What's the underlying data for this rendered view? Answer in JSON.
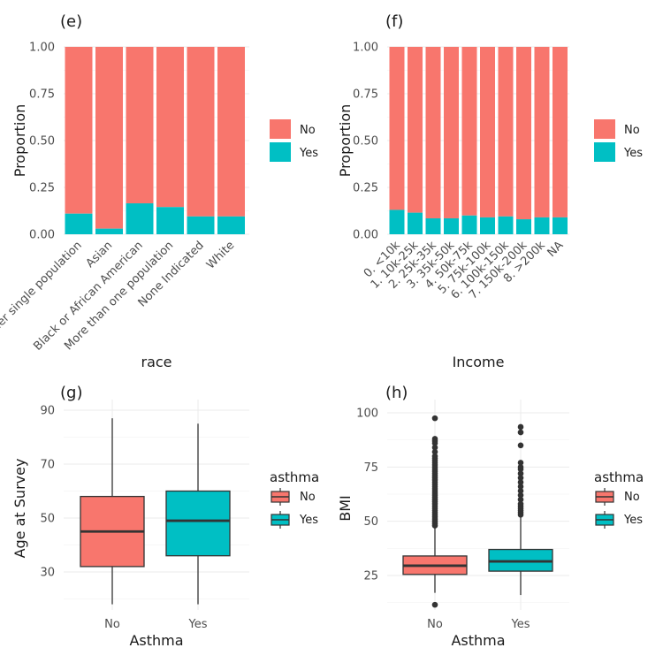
{
  "colors": {
    "no": "#F8766D",
    "yes": "#00BFC4",
    "grid": "#ebebeb",
    "line": "#333333"
  },
  "chart_data": [
    {
      "tag": "(e)",
      "type": "bar",
      "stacked": "fill",
      "xlabel": "race",
      "ylabel": "Proportion",
      "ylim": [
        0,
        1
      ],
      "yticks": [
        "0.00",
        "0.25",
        "0.50",
        "0.75",
        "1.00"
      ],
      "categories": [
        "Other single population",
        "Asian",
        "Black or African American",
        "More than one population",
        "None Indicated",
        "White"
      ],
      "series": [
        {
          "name": "No",
          "values": [
            0.89,
            0.97,
            0.835,
            0.855,
            0.905,
            0.905
          ]
        },
        {
          "name": "Yes",
          "values": [
            0.11,
            0.03,
            0.165,
            0.145,
            0.095,
            0.095
          ]
        }
      ],
      "legend": {
        "title": "",
        "position": "right"
      }
    },
    {
      "tag": "(f)",
      "type": "bar",
      "stacked": "fill",
      "xlabel": "Income",
      "ylabel": "Proportion",
      "ylim": [
        0,
        1
      ],
      "yticks": [
        "0.00",
        "0.25",
        "0.50",
        "0.75",
        "1.00"
      ],
      "categories": [
        "0. <10k",
        "1. 10k-25k",
        "2. 25k-35k",
        "3. 35k-50k",
        "4. 50k-75k",
        "5. 75k-100k",
        "6. 100k-150k",
        "7. 150k-200k",
        "8. >200k",
        "NA"
      ],
      "series": [
        {
          "name": "No",
          "values": [
            0.87,
            0.885,
            0.915,
            0.915,
            0.9,
            0.91,
            0.905,
            0.92,
            0.91,
            0.91
          ]
        },
        {
          "name": "Yes",
          "values": [
            0.13,
            0.115,
            0.085,
            0.085,
            0.1,
            0.09,
            0.095,
            0.08,
            0.09,
            0.09
          ]
        }
      ],
      "legend": {
        "title": "",
        "position": "right"
      }
    },
    {
      "tag": "(g)",
      "type": "box",
      "xlabel": "Asthma",
      "ylabel": "Age at Survey",
      "ylim": [
        14.5,
        92
      ],
      "yticks": [
        30,
        50,
        70,
        90
      ],
      "categories": [
        "No",
        "Yes"
      ],
      "boxes": [
        {
          "name": "No",
          "min": 18,
          "q1": 32,
          "median": 45,
          "q3": 58,
          "max": 87,
          "outliers": []
        },
        {
          "name": "Yes",
          "min": 18,
          "q1": 36,
          "median": 49,
          "q3": 60,
          "max": 85,
          "outliers": []
        }
      ],
      "legend": {
        "title": "asthma",
        "position": "right"
      }
    },
    {
      "tag": "(h)",
      "type": "box",
      "xlabel": "Asthma",
      "ylabel": "BMI",
      "ylim": [
        10,
        100
      ],
      "yticks": [
        25,
        50,
        75,
        100
      ],
      "categories": [
        "No",
        "Yes"
      ],
      "boxes": [
        {
          "name": "No",
          "min": 17,
          "q1": 25.5,
          "median": 29.5,
          "q3": 34,
          "max": 47,
          "outliers": [
            11.5,
            48,
            49,
            50,
            51,
            52,
            53,
            54,
            55,
            56,
            57,
            58,
            59,
            60,
            61,
            62,
            63,
            64,
            65,
            66,
            67,
            68,
            69,
            70,
            71,
            72,
            73,
            74,
            75,
            76,
            77,
            78,
            79,
            80,
            82,
            84,
            86,
            87,
            88,
            97.5
          ]
        },
        {
          "name": "Yes",
          "min": 16,
          "q1": 27,
          "median": 31.5,
          "q3": 37,
          "max": 52,
          "outliers": [
            53,
            54,
            55,
            56,
            57,
            58,
            60,
            62,
            64,
            66,
            68,
            70,
            72,
            74,
            75,
            77,
            85,
            91,
            93.5
          ]
        }
      ],
      "legend": {
        "title": "asthma",
        "position": "right"
      }
    }
  ]
}
